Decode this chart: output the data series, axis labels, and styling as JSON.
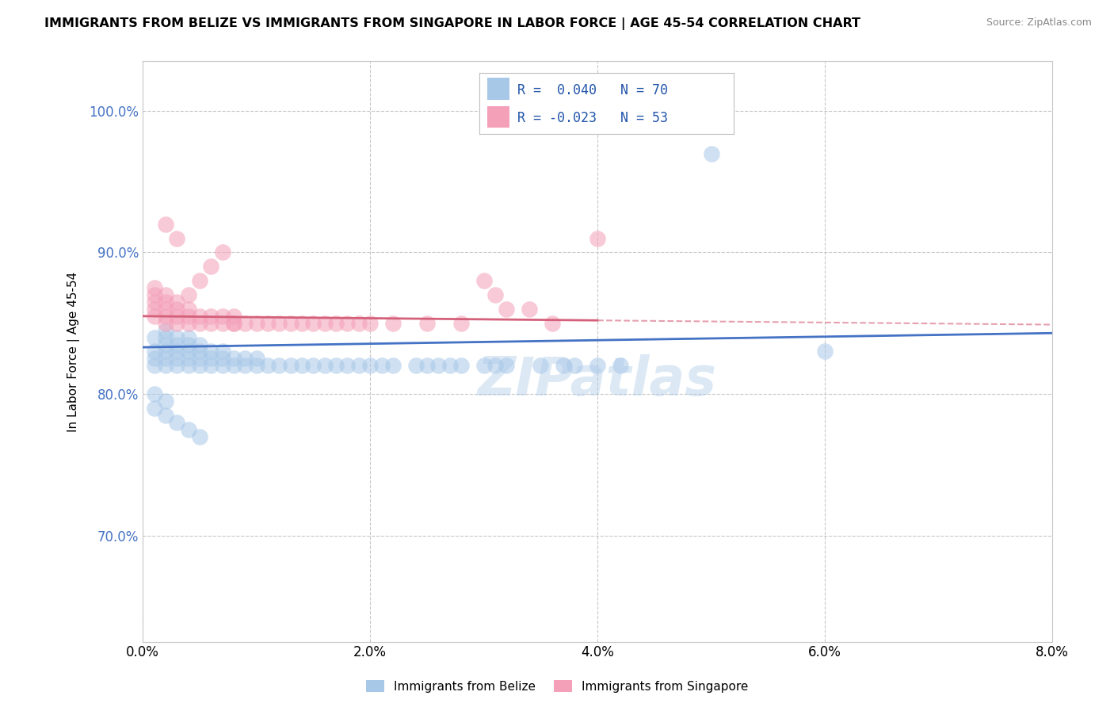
{
  "title": "IMMIGRANTS FROM BELIZE VS IMMIGRANTS FROM SINGAPORE IN LABOR FORCE | AGE 45-54 CORRELATION CHART",
  "source": "Source: ZipAtlas.com",
  "xlabel": "",
  "ylabel": "In Labor Force | Age 45-54",
  "xlim": [
    0.0,
    0.08
  ],
  "ylim": [
    0.625,
    1.035
  ],
  "ytick_values": [
    0.7,
    0.8,
    0.9,
    1.0
  ],
  "xtick_values": [
    0.0,
    0.02,
    0.04,
    0.06,
    0.08
  ],
  "belize_color": "#a8c8e8",
  "singapore_color": "#f4a0b8",
  "belize_R": 0.04,
  "belize_N": 70,
  "singapore_R": -0.023,
  "singapore_N": 53,
  "belize_trend_color": "#4472c4",
  "singapore_trend_color": "#d4607a",
  "watermark": "ZIPatlas",
  "legend_label_belize": "Immigrants from Belize",
  "legend_label_singapore": "Immigrants from Singapore",
  "belize_x": [
    0.001,
    0.001,
    0.001,
    0.001,
    0.002,
    0.002,
    0.002,
    0.002,
    0.002,
    0.002,
    0.003,
    0.003,
    0.003,
    0.003,
    0.003,
    0.004,
    0.004,
    0.004,
    0.004,
    0.004,
    0.005,
    0.005,
    0.005,
    0.005,
    0.006,
    0.006,
    0.006,
    0.007,
    0.007,
    0.007,
    0.008,
    0.008,
    0.009,
    0.009,
    0.01,
    0.01,
    0.011,
    0.012,
    0.013,
    0.014,
    0.015,
    0.016,
    0.017,
    0.018,
    0.019,
    0.02,
    0.021,
    0.022,
    0.024,
    0.025,
    0.026,
    0.027,
    0.028,
    0.03,
    0.031,
    0.032,
    0.035,
    0.037,
    0.04,
    0.042,
    0.001,
    0.001,
    0.002,
    0.002,
    0.003,
    0.004,
    0.005,
    0.038,
    0.06,
    0.05
  ],
  "belize_y": [
    0.82,
    0.825,
    0.83,
    0.84,
    0.82,
    0.825,
    0.83,
    0.835,
    0.84,
    0.845,
    0.82,
    0.825,
    0.83,
    0.835,
    0.84,
    0.82,
    0.825,
    0.83,
    0.835,
    0.84,
    0.82,
    0.825,
    0.83,
    0.835,
    0.82,
    0.825,
    0.83,
    0.82,
    0.825,
    0.83,
    0.82,
    0.825,
    0.82,
    0.825,
    0.82,
    0.825,
    0.82,
    0.82,
    0.82,
    0.82,
    0.82,
    0.82,
    0.82,
    0.82,
    0.82,
    0.82,
    0.82,
    0.82,
    0.82,
    0.82,
    0.82,
    0.82,
    0.82,
    0.82,
    0.82,
    0.82,
    0.82,
    0.82,
    0.82,
    0.82,
    0.8,
    0.79,
    0.795,
    0.785,
    0.78,
    0.775,
    0.77,
    0.82,
    0.83,
    0.97
  ],
  "singapore_x": [
    0.001,
    0.001,
    0.001,
    0.001,
    0.001,
    0.002,
    0.002,
    0.002,
    0.002,
    0.002,
    0.003,
    0.003,
    0.003,
    0.003,
    0.004,
    0.004,
    0.004,
    0.005,
    0.005,
    0.006,
    0.006,
    0.007,
    0.007,
    0.008,
    0.008,
    0.009,
    0.01,
    0.011,
    0.012,
    0.013,
    0.014,
    0.015,
    0.016,
    0.017,
    0.018,
    0.019,
    0.02,
    0.022,
    0.025,
    0.028,
    0.03,
    0.031,
    0.032,
    0.034,
    0.036,
    0.04,
    0.002,
    0.003,
    0.004,
    0.005,
    0.006,
    0.007,
    0.008
  ],
  "singapore_y": [
    0.855,
    0.86,
    0.865,
    0.87,
    0.875,
    0.85,
    0.855,
    0.86,
    0.865,
    0.87,
    0.85,
    0.855,
    0.86,
    0.865,
    0.85,
    0.855,
    0.86,
    0.85,
    0.855,
    0.85,
    0.855,
    0.85,
    0.855,
    0.85,
    0.855,
    0.85,
    0.85,
    0.85,
    0.85,
    0.85,
    0.85,
    0.85,
    0.85,
    0.85,
    0.85,
    0.85,
    0.85,
    0.85,
    0.85,
    0.85,
    0.88,
    0.87,
    0.86,
    0.86,
    0.85,
    0.91,
    0.92,
    0.91,
    0.87,
    0.88,
    0.89,
    0.9,
    0.85
  ],
  "belize_trend_x0": 0.0,
  "belize_trend_y0": 0.833,
  "belize_trend_x1": 0.08,
  "belize_trend_y1": 0.843,
  "singapore_trend_x0": 0.0,
  "singapore_trend_y0": 0.855,
  "singapore_trend_x1": 0.04,
  "singapore_trend_y1": 0.852,
  "singapore_trend_dash_x0": 0.04,
  "singapore_trend_dash_y0": 0.852,
  "singapore_trend_dash_x1": 0.08,
  "singapore_trend_dash_y1": 0.849
}
